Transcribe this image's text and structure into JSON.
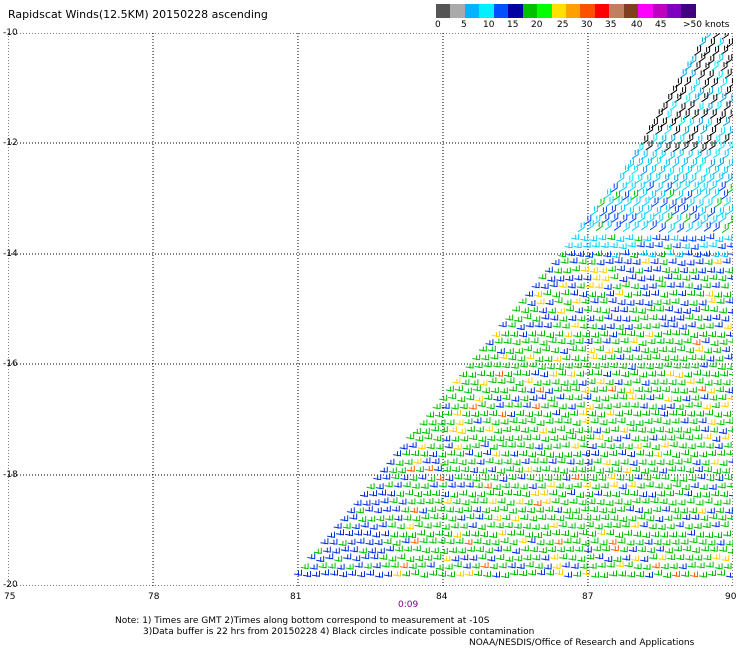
{
  "title": "Rapidscat Winds(12.5KM) 20150228 ascending",
  "colorbar": {
    "colors": [
      "#555555",
      "#aaaaaa",
      "#00b4ff",
      "#00f0ff",
      "#0050ff",
      "#0000a0",
      "#00c000",
      "#00ff00",
      "#ffe000",
      "#ffa000",
      "#ff5000",
      "#ff0000",
      "#c08060",
      "#804020",
      "#ff00ff",
      "#c000c0",
      "#8000c0",
      "#400080"
    ],
    "labels": [
      "0",
      "5",
      "10",
      "15",
      "20",
      "25",
      "30",
      "35",
      "40",
      "45",
      ">50 knots"
    ]
  },
  "axes": {
    "y_labels": [
      "-10",
      "-12",
      "-14",
      "-16",
      "-18",
      "-20"
    ],
    "x_labels": [
      "75",
      "78",
      "81",
      "84",
      "87",
      "90"
    ]
  },
  "time_label": "0:09",
  "notes": {
    "line1": "Note: 1) Times are GMT 2)Times along bottom correspond to measurement at -10S",
    "line2": "3)Data buffer is 22 hrs from 20150228 4) Black circles indicate possible contamination",
    "line3": "NOAA/NESDIS/Office of Research and Applications"
  }
}
